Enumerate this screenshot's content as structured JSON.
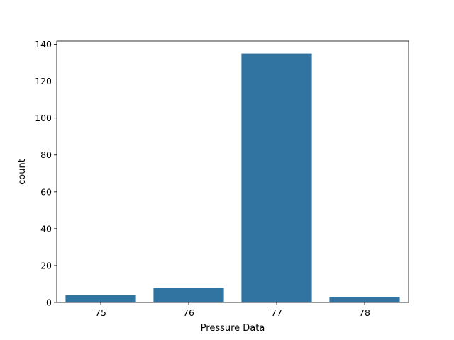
{
  "chart_data": {
    "type": "bar",
    "categories": [
      "75",
      "76",
      "77",
      "78"
    ],
    "values": [
      4,
      8,
      135,
      3
    ],
    "xlabel": "Pressure Data",
    "ylabel": "count",
    "ylim": [
      0,
      141.75
    ],
    "yticks": [
      0,
      20,
      40,
      60,
      80,
      100,
      120,
      140
    ],
    "grid": false,
    "bar_color": "#3274a1"
  }
}
